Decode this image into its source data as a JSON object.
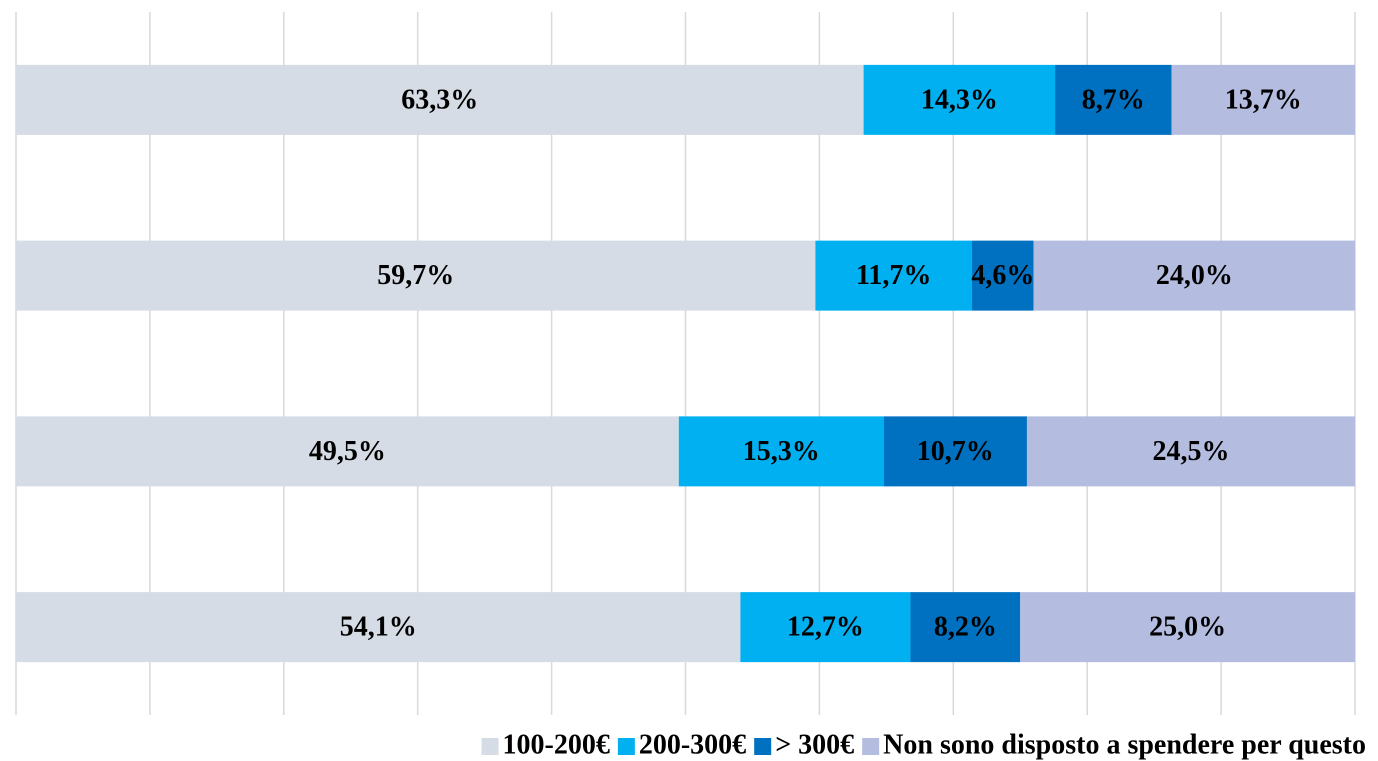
{
  "chart_data": {
    "type": "stacked_barh",
    "categories": [
      null,
      null,
      null,
      null
    ],
    "series": [
      {
        "name": "100-200€",
        "color": "#d6dce5",
        "values": [
          63.3,
          59.7,
          49.5,
          54.1
        ],
        "value_labels": [
          "63,3%",
          "59,7%",
          "49,5%",
          "54,1%"
        ]
      },
      {
        "name": "200-300€",
        "color": "#00b0f0",
        "values": [
          14.3,
          11.7,
          15.3,
          12.7
        ],
        "value_labels": [
          "14,3%",
          "11,7%",
          "15,3%",
          "12,7%"
        ]
      },
      {
        "name": "> 300€",
        "color": "#0070c0",
        "values": [
          8.7,
          4.6,
          10.7,
          8.2
        ],
        "value_labels": [
          "8,7%",
          "4,6%",
          "10,7%",
          "8,2%"
        ]
      },
      {
        "name": "Non sono disposto a spendere per questo",
        "color": "#b4bde0",
        "values": [
          13.7,
          24.0,
          24.5,
          25.0
        ],
        "value_labels": [
          "13,7%",
          "24,0%",
          "24,5%",
          "25,0%"
        ]
      }
    ],
    "xlim": [
      0,
      100
    ],
    "xticks": [
      0,
      10,
      20,
      30,
      40,
      50,
      60,
      70,
      80,
      90,
      100
    ],
    "grid": true,
    "legend": "bottom"
  }
}
